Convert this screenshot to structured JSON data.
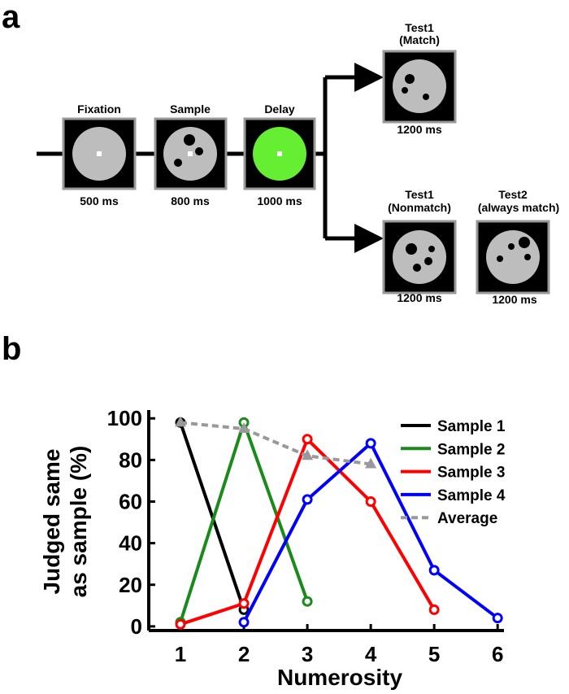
{
  "panels": {
    "a": "a",
    "b": "b"
  },
  "diagram": {
    "fixation": {
      "label": "Fixation",
      "time": "500 ms"
    },
    "sample": {
      "label": "Sample",
      "time": "800 ms"
    },
    "delay": {
      "label": "Delay",
      "time": "1000 ms"
    },
    "test1_match": {
      "label": "Test1",
      "sub": "(Match)",
      "time": "1200 ms"
    },
    "test1_nonmatch": {
      "label": "Test1",
      "sub": "(Nonmatch)",
      "time": "1200 ms"
    },
    "test2": {
      "label": "Test2",
      "sub": "(always match)",
      "time": "1200 ms"
    }
  },
  "chart_data": {
    "type": "line",
    "xlabel": "Numerosity",
    "ylabel": [
      "Judged same",
      "as sample (%)"
    ],
    "x": [
      1,
      2,
      3,
      4,
      5,
      6
    ],
    "series": [
      {
        "name": "Sample 1",
        "color": "#000000",
        "values": [
          98,
          8,
          null,
          null,
          null,
          null
        ]
      },
      {
        "name": "Sample 2",
        "color": "#1a8a1a",
        "values": [
          2,
          98,
          12,
          null,
          null,
          null
        ]
      },
      {
        "name": "Sample 3",
        "color": "#ff0000",
        "values": [
          1,
          11,
          90,
          60,
          8,
          null
        ]
      },
      {
        "name": "Sample 4",
        "color": "#0000ff",
        "values": [
          null,
          2,
          61,
          88,
          27,
          4
        ]
      },
      {
        "name": "Average",
        "color": "#999999",
        "dashed": true,
        "values": [
          98,
          95,
          82,
          78,
          null,
          null
        ]
      }
    ],
    "xlim": [
      0.5,
      6.1
    ],
    "ylim": [
      -2,
      104
    ],
    "xticks": [
      1,
      2,
      3,
      4,
      5,
      6
    ],
    "yticks": [
      0,
      20,
      40,
      60,
      80,
      100
    ],
    "legend": "upper right"
  }
}
